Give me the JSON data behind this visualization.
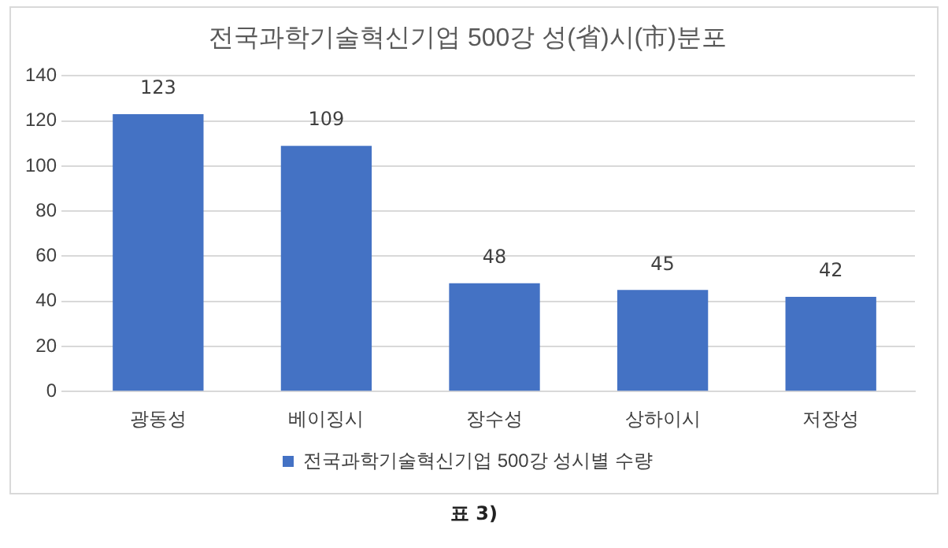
{
  "chart_data": {
    "type": "bar",
    "title": "전국과학기술혁신기업 500강 성(省)시(市)분포",
    "categories": [
      "광동성",
      "베이징시",
      "장수성",
      "상하이시",
      "저장성"
    ],
    "series": [
      {
        "name": "전국과학기술혁신기업 500강 성시별 수량",
        "color": "#4472c4",
        "values": [
          123,
          109,
          48,
          45,
          42
        ]
      }
    ],
    "ylim": [
      0,
      140
    ],
    "yticks": [
      0,
      20,
      40,
      60,
      80,
      100,
      120,
      140
    ],
    "grid": "y",
    "legend": "bottom",
    "data_labels": true,
    "annotations": [
      "표 3)"
    ]
  }
}
